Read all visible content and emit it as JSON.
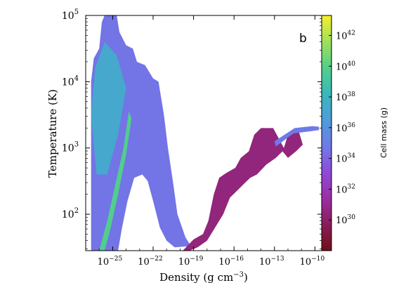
{
  "chart_data": {
    "type": "heatmap",
    "panel_label": "b",
    "xlabel": "Density (g cm^{-3})",
    "ylabel": "Temperature (K)",
    "x_scale": "log",
    "y_scale": "log",
    "xlim_log10": [
      -27,
      -9.5
    ],
    "ylim_log10": [
      1.45,
      5
    ],
    "x_ticks": [
      {
        "exp": -25,
        "label": "10",
        "sup": "−25"
      },
      {
        "exp": -22,
        "label": "10",
        "sup": "−22"
      },
      {
        "exp": -19,
        "label": "10",
        "sup": "−19"
      },
      {
        "exp": -16,
        "label": "10",
        "sup": "−16"
      },
      {
        "exp": -13,
        "label": "10",
        "sup": "−13"
      },
      {
        "exp": -10,
        "label": "10",
        "sup": "−10"
      }
    ],
    "y_ticks": [
      {
        "exp": 2,
        "label": "10",
        "sup": "2"
      },
      {
        "exp": 3,
        "label": "10",
        "sup": "3"
      },
      {
        "exp": 4,
        "label": "10",
        "sup": "4"
      },
      {
        "exp": 5,
        "label": "10",
        "sup": "5"
      }
    ],
    "colorbar": {
      "label": "Cell mass (g)",
      "range_log10": [
        28,
        43.3
      ],
      "ticks": [
        {
          "exp": 30,
          "label": "10",
          "sup": "30"
        },
        {
          "exp": 32,
          "label": "10",
          "sup": "32"
        },
        {
          "exp": 34,
          "label": "10",
          "sup": "34"
        },
        {
          "exp": 36,
          "label": "10",
          "sup": "36"
        },
        {
          "exp": 38,
          "label": "10",
          "sup": "38"
        },
        {
          "exp": 40,
          "label": "10",
          "sup": "40"
        },
        {
          "exp": 42,
          "label": "10",
          "sup": "42"
        }
      ],
      "colormap": [
        "#6e1016",
        "#8b1c5a",
        "#9a2fa3",
        "#8f4ad8",
        "#6f7ae8",
        "#4f9ddb",
        "#39b8b8",
        "#52cf8a",
        "#9fe05a",
        "#f5f02a"
      ]
    },
    "regions": [
      {
        "name": "diffuse-warm-gas",
        "mass_log10": 34.6,
        "outline_log_rho_T": [
          [
            -26.6,
            1.45
          ],
          [
            -26.6,
            4.0
          ],
          [
            -26.4,
            4.35
          ],
          [
            -26.0,
            4.5
          ],
          [
            -25.8,
            4.9
          ],
          [
            -25.6,
            5.0
          ],
          [
            -24.7,
            5.0
          ],
          [
            -24.5,
            4.75
          ],
          [
            -24.0,
            4.55
          ],
          [
            -23.5,
            4.5
          ],
          [
            -23.2,
            4.3
          ],
          [
            -22.6,
            4.25
          ],
          [
            -22.0,
            4.05
          ],
          [
            -21.6,
            4.0
          ],
          [
            -21.2,
            3.5
          ],
          [
            -20.9,
            3.0
          ],
          [
            -20.5,
            2.45
          ],
          [
            -20.2,
            2.0
          ],
          [
            -19.6,
            1.65
          ],
          [
            -19.2,
            1.52
          ],
          [
            -20.4,
            1.5
          ],
          [
            -21.0,
            1.6
          ],
          [
            -21.5,
            1.8
          ],
          [
            -22.0,
            2.2
          ],
          [
            -22.4,
            2.5
          ],
          [
            -22.8,
            2.6
          ],
          [
            -23.4,
            2.55
          ],
          [
            -23.9,
            2.2
          ],
          [
            -24.3,
            1.8
          ],
          [
            -24.6,
            1.45
          ]
        ]
      },
      {
        "name": "cold-dense-branch",
        "mass_log10": 30.5,
        "outline_log_rho_T": [
          [
            -19.8,
            1.45
          ],
          [
            -19.0,
            1.62
          ],
          [
            -18.3,
            1.7
          ],
          [
            -17.9,
            1.9
          ],
          [
            -17.5,
            2.3
          ],
          [
            -17.1,
            2.55
          ],
          [
            -16.6,
            2.62
          ],
          [
            -15.9,
            2.7
          ],
          [
            -15.5,
            2.85
          ],
          [
            -14.9,
            2.95
          ],
          [
            -14.5,
            3.2
          ],
          [
            -14.0,
            3.3
          ],
          [
            -13.1,
            3.3
          ],
          [
            -12.7,
            3.15
          ],
          [
            -12.3,
            3.0
          ],
          [
            -12.0,
            3.2
          ],
          [
            -11.2,
            3.25
          ],
          [
            -10.9,
            3.05
          ],
          [
            -11.4,
            2.95
          ],
          [
            -12.0,
            2.85
          ],
          [
            -12.4,
            2.95
          ],
          [
            -12.9,
            2.85
          ],
          [
            -13.6,
            2.75
          ],
          [
            -14.3,
            2.6
          ],
          [
            -14.8,
            2.55
          ],
          [
            -15.3,
            2.45
          ],
          [
            -15.8,
            2.35
          ],
          [
            -16.3,
            2.25
          ],
          [
            -16.8,
            2.0
          ],
          [
            -17.4,
            1.8
          ],
          [
            -18.0,
            1.6
          ],
          [
            -18.7,
            1.5
          ],
          [
            -19.3,
            1.45
          ]
        ]
      },
      {
        "name": "dense-hot-tail",
        "mass_log10": 34.8,
        "outline_log_rho_T": [
          [
            -13.0,
            3.1
          ],
          [
            -11.5,
            3.3
          ],
          [
            -10.2,
            3.33
          ],
          [
            -9.7,
            3.32
          ],
          [
            -9.7,
            3.27
          ],
          [
            -10.4,
            3.25
          ],
          [
            -11.6,
            3.22
          ],
          [
            -12.9,
            3.02
          ]
        ]
      },
      {
        "name": "inner-ridge",
        "mass_log10": 37.2,
        "outline_log_rho_T": [
          [
            -26.6,
            3.5
          ],
          [
            -26.3,
            4.2
          ],
          [
            -25.6,
            4.6
          ],
          [
            -24.7,
            4.4
          ],
          [
            -24.0,
            3.9
          ],
          [
            -24.6,
            3.2
          ],
          [
            -25.4,
            2.6
          ],
          [
            -26.2,
            2.6
          ]
        ]
      },
      {
        "name": "adiabatic-streak",
        "mass_log10": 39.8,
        "outline_log_rho_T": [
          [
            -26.0,
            1.45
          ],
          [
            -25.4,
            1.9
          ],
          [
            -24.8,
            2.45
          ],
          [
            -24.2,
            3.0
          ],
          [
            -23.8,
            3.55
          ],
          [
            -23.6,
            3.45
          ],
          [
            -24.0,
            2.9
          ],
          [
            -24.6,
            2.3
          ],
          [
            -25.2,
            1.75
          ],
          [
            -25.6,
            1.45
          ]
        ]
      }
    ]
  }
}
